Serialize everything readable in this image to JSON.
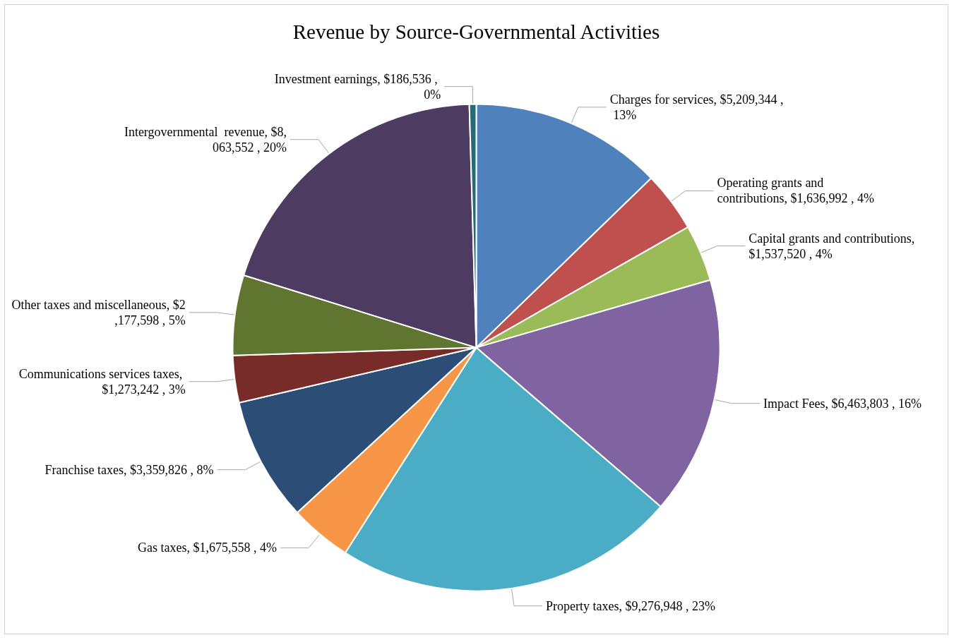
{
  "chart_data": {
    "type": "pie",
    "title": "Revenue by Source-Governmental Activities",
    "categories": [
      "Charges for services",
      "Operating grants and contributions",
      "Capital grants and contributions",
      "Impact Fees",
      "Property taxes",
      "Gas taxes",
      "Franchise taxes",
      "Communications services taxes",
      "Other taxes and miscellaneous",
      "Intergovernmental  revenue",
      "Investment earnings"
    ],
    "values": [
      5209344,
      1636992,
      1537520,
      6463803,
      9276948,
      1675558,
      3359826,
      1273242,
      2177598,
      8063552,
      186536
    ],
    "value_labels": [
      ", $5,209,344 , 13%",
      ", $1,636,992 , 4%",
      ", $1,537,520 , 4%",
      ", $6,463,803 , 16%",
      ", $9,276,948 , 23%",
      ", $1,675,558 , 4%",
      ", $3,359,826 , 8%",
      ", $1,273,242 , 3%",
      ", $2,177,598 , 5%",
      ", $8,063,552 , 20%",
      ", $186,536 , 0%"
    ],
    "colors": [
      "#4f81bd",
      "#c0504d",
      "#9bbb59",
      "#8064a2",
      "#4bacc6",
      "#f79646",
      "#2c4d75",
      "#772c2a",
      "#5f7530",
      "#4d3b62",
      "#276a7c"
    ],
    "legend": false
  }
}
